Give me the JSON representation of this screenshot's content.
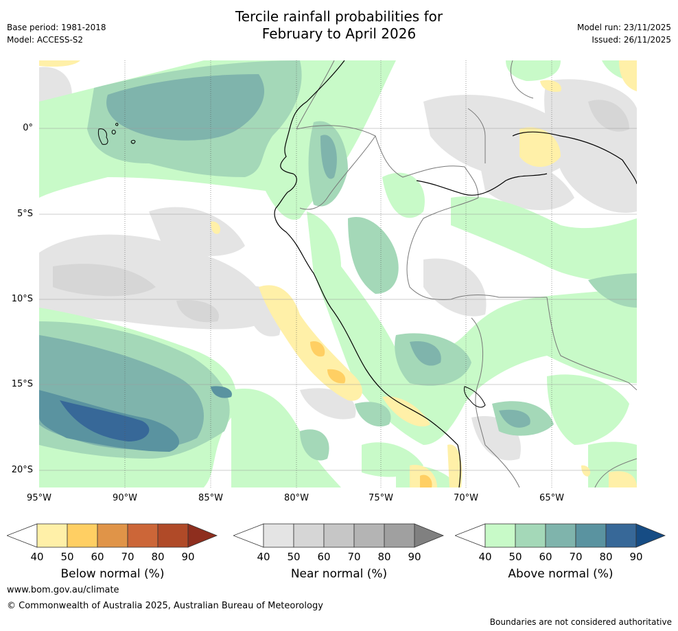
{
  "header": {
    "title_line1": "Tercile rainfall probabilities for",
    "title_line2": "February to April 2026",
    "base_period": "Base period: 1981-2018",
    "model": "Model: ACCESS-S2",
    "model_run": "Model run: 23/11/2025",
    "issued": "Issued: 26/11/2025"
  },
  "map": {
    "lat_labels": [
      "0°",
      "5°S",
      "10°S",
      "15°S",
      "20°S"
    ],
    "lon_labels": [
      "95°W",
      "90°W",
      "85°W",
      "80°W",
      "75°W",
      "70°W",
      "65°W"
    ]
  },
  "legends": {
    "below": {
      "title": "Below normal (%)",
      "ticks": [
        "40",
        "50",
        "60",
        "70",
        "80",
        "90"
      ],
      "colors": [
        "#ffffff",
        "#fff0a8",
        "#ffcf63",
        "#e09448",
        "#cc6638",
        "#b04a28",
        "#8e2e1e"
      ]
    },
    "near": {
      "title": "Near normal (%)",
      "ticks": [
        "40",
        "50",
        "60",
        "70",
        "80",
        "90"
      ],
      "colors": [
        "#ffffff",
        "#e4e4e4",
        "#d6d6d6",
        "#c6c6c6",
        "#b4b4b4",
        "#a0a0a0",
        "#808080"
      ]
    },
    "above": {
      "title": "Above normal (%)",
      "ticks": [
        "40",
        "50",
        "60",
        "70",
        "80",
        "90"
      ],
      "colors": [
        "#ffffff",
        "#c8fac8",
        "#a4d8b8",
        "#7fb4ac",
        "#5a93a0",
        "#376898",
        "#164c84"
      ]
    }
  },
  "footer": {
    "website": "www.bom.gov.au/climate",
    "copyright": "© Commonwealth of Australia 2025, Australian Bureau of Meteorology",
    "disclaimer": "Boundaries are not considered authoritative"
  }
}
